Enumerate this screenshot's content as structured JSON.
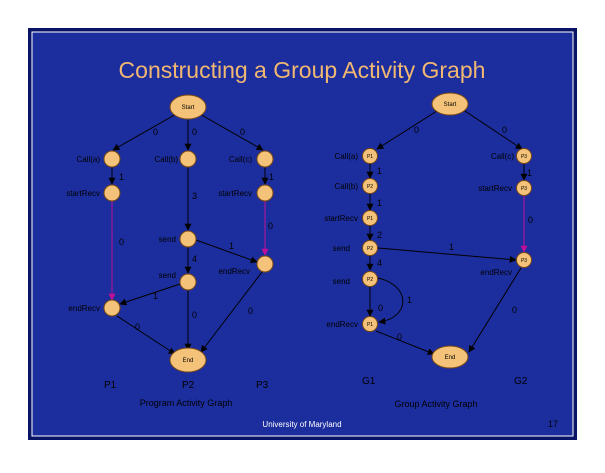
{
  "slide": {
    "title": "Constructing a Group Activity Graph",
    "footer": "University of Maryland",
    "page_number": "17"
  },
  "colors": {
    "background": "#1c2e9e",
    "frame": "#0a1466",
    "title": "#f2b872",
    "node_fill": "#f5c27a",
    "node_stroke": "#7a4a10",
    "edge": "#000000",
    "edge_highlight": "#c0109a",
    "text": "#000000",
    "footer_text": "#ffffff"
  },
  "left_graph": {
    "caption": "Program Activity Graph",
    "column_labels": [
      "P1",
      "P2",
      "P3"
    ],
    "start_label": "Start",
    "end_label": "End",
    "node_labels": {
      "call_a": "Call(a)",
      "call_b": "Call(b)",
      "call_c": "Call(c)",
      "start_recv_p1": "startRecv",
      "start_recv_p3": "startRecv",
      "send_1": "send",
      "send_2": "send",
      "end_recv_p3": "endRecv",
      "end_recv_p1": "endRecv"
    },
    "edge_labels": {
      "start_a": "0",
      "start_b": "0",
      "start_c": "0",
      "a_sr1": "1",
      "c_sr3": "1",
      "b_send1": "3",
      "sr1_er1": "0",
      "sr3_er3": "0",
      "send1_er3": "1",
      "send1_send2": "4",
      "send2_er1": "1",
      "send2_end": "0",
      "er1_end": "0",
      "er3_end": "0"
    }
  },
  "right_graph": {
    "caption": "Group Activity Graph",
    "column_labels": [
      "G1",
      "G2"
    ],
    "start_label": "Start",
    "end_label": "End",
    "node_labels": {
      "g1_call_a": "Call(a)",
      "g1_call_b": "Call(b)",
      "g1_start_recv": "startRecv",
      "g1_send_1": "send",
      "g1_send_2": "send",
      "g1_end_recv": "endRecv",
      "g2_call_c": "Call(c)",
      "g2_start_recv": "startRecv",
      "g2_end_recv": "endRecv"
    },
    "node_tags": {
      "g1_call_a": "P1",
      "g1_call_b": "P2",
      "g1_start_recv": "P1",
      "g1_send_1": "P2",
      "g1_send_2": "P2",
      "g1_end_recv": "P1",
      "g2_call_c": "P3",
      "g2_start_recv": "P3",
      "g2_end_recv": "P3"
    },
    "edge_labels": {
      "start_g1": "0",
      "start_g2": "0",
      "a_b": "1",
      "b_sr": "1",
      "sr_send1": "2",
      "send1_send2": "4",
      "send1_er3": "1",
      "sr3_er3": "0",
      "c_sr3": "1",
      "send2_er1": "0",
      "send2_loop": "1",
      "er1_end": "0",
      "er3_end": "0"
    }
  }
}
